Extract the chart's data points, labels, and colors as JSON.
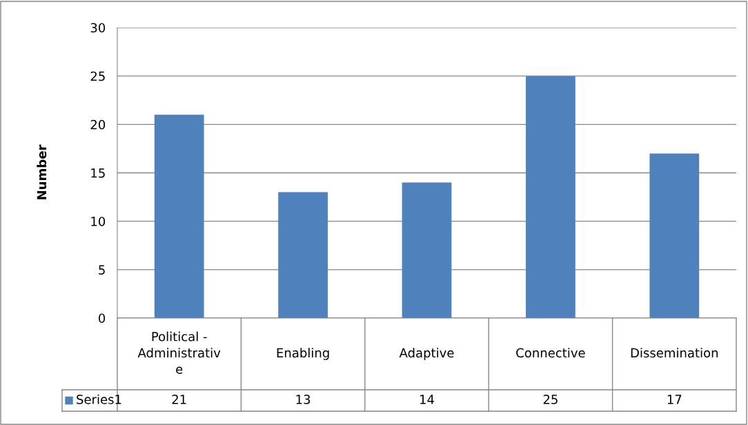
{
  "chart_data": {
    "type": "bar",
    "ylabel": "Number",
    "categories": [
      "Political - Administrative",
      "Enabling",
      "Adaptive",
      "Connective",
      "Dissemination"
    ],
    "series": [
      {
        "name": "Series1",
        "color": "#4f81bd",
        "values": [
          21,
          13,
          14,
          25,
          17
        ]
      }
    ],
    "ylim": [
      0,
      30
    ],
    "yticks": [
      0,
      5,
      10,
      15,
      20,
      25,
      30
    ],
    "grid": "y",
    "legend": "bottom",
    "data_labels": true
  }
}
